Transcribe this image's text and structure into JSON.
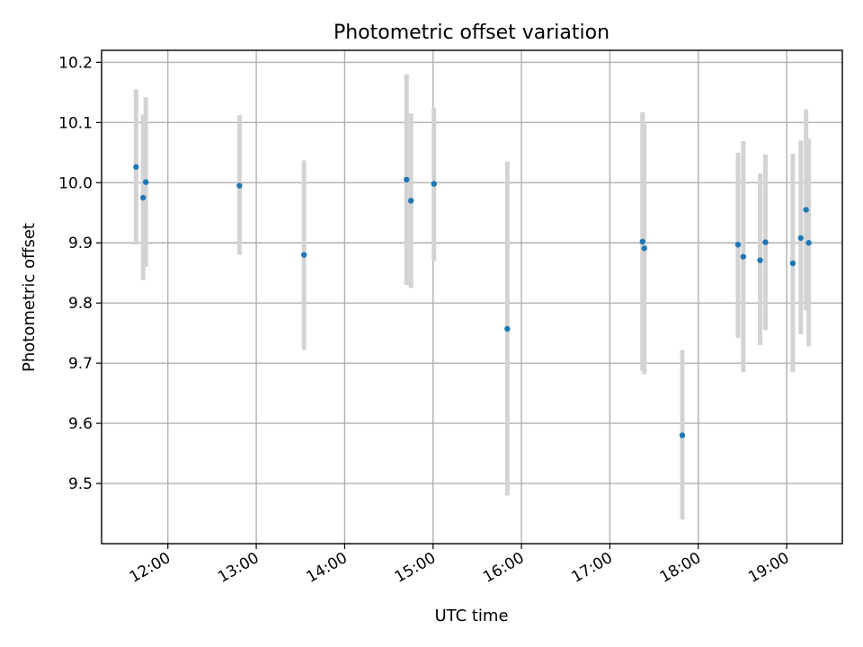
{
  "chart_data": {
    "type": "scatter",
    "title": "Photometric offset variation",
    "xlabel": "UTC time",
    "ylabel": "Photometric offset",
    "x_unit": "hour",
    "xlim": [
      11.25,
      19.63
    ],
    "ylim": [
      9.4,
      10.22
    ],
    "grid": true,
    "xticks": [
      {
        "value": 12,
        "label": "12:00"
      },
      {
        "value": 13,
        "label": "13:00"
      },
      {
        "value": 14,
        "label": "14:00"
      },
      {
        "value": 15,
        "label": "15:00"
      },
      {
        "value": 16,
        "label": "16:00"
      },
      {
        "value": 17,
        "label": "17:00"
      },
      {
        "value": 18,
        "label": "18:00"
      },
      {
        "value": 19,
        "label": "19:00"
      }
    ],
    "yticks": [
      {
        "value": 9.5,
        "label": "9.5"
      },
      {
        "value": 9.6,
        "label": "9.6"
      },
      {
        "value": 9.7,
        "label": "9.7"
      },
      {
        "value": 9.8,
        "label": "9.8"
      },
      {
        "value": 9.9,
        "label": "9.9"
      },
      {
        "value": 10.0,
        "label": "10.0"
      },
      {
        "value": 10.1,
        "label": "10.1"
      },
      {
        "value": 10.2,
        "label": "10.2"
      }
    ],
    "colors": {
      "point": "#1f77b4",
      "errorbar": "#d3d3d3"
    },
    "points": [
      {
        "x": 11.64,
        "y": 10.026,
        "ylow": 9.897,
        "yhigh": 10.155
      },
      {
        "x": 11.72,
        "y": 9.975,
        "ylow": 9.838,
        "yhigh": 10.113
      },
      {
        "x": 11.75,
        "y": 10.001,
        "ylow": 9.86,
        "yhigh": 10.142
      },
      {
        "x": 12.81,
        "y": 9.995,
        "ylow": 9.88,
        "yhigh": 10.112
      },
      {
        "x": 13.54,
        "y": 9.88,
        "ylow": 9.722,
        "yhigh": 10.037
      },
      {
        "x": 14.7,
        "y": 10.005,
        "ylow": 9.83,
        "yhigh": 10.18
      },
      {
        "x": 14.75,
        "y": 9.97,
        "ylow": 9.825,
        "yhigh": 10.115
      },
      {
        "x": 15.01,
        "y": 9.998,
        "ylow": 9.87,
        "yhigh": 10.125
      },
      {
        "x": 15.84,
        "y": 9.757,
        "ylow": 9.48,
        "yhigh": 10.035
      },
      {
        "x": 17.37,
        "y": 9.902,
        "ylow": 9.687,
        "yhigh": 10.117
      },
      {
        "x": 17.39,
        "y": 9.891,
        "ylow": 9.682,
        "yhigh": 10.098
      },
      {
        "x": 17.82,
        "y": 9.58,
        "ylow": 9.44,
        "yhigh": 9.722
      },
      {
        "x": 18.45,
        "y": 9.897,
        "ylow": 9.742,
        "yhigh": 10.05
      },
      {
        "x": 18.51,
        "y": 9.877,
        "ylow": 9.685,
        "yhigh": 10.069
      },
      {
        "x": 18.7,
        "y": 9.871,
        "ylow": 9.73,
        "yhigh": 10.015
      },
      {
        "x": 18.76,
        "y": 9.901,
        "ylow": 9.755,
        "yhigh": 10.047
      },
      {
        "x": 19.07,
        "y": 9.866,
        "ylow": 9.685,
        "yhigh": 10.048
      },
      {
        "x": 19.16,
        "y": 9.908,
        "ylow": 9.748,
        "yhigh": 10.07
      },
      {
        "x": 19.22,
        "y": 9.955,
        "ylow": 9.788,
        "yhigh": 10.122
      },
      {
        "x": 19.25,
        "y": 9.9,
        "ylow": 9.728,
        "yhigh": 10.073
      }
    ]
  }
}
